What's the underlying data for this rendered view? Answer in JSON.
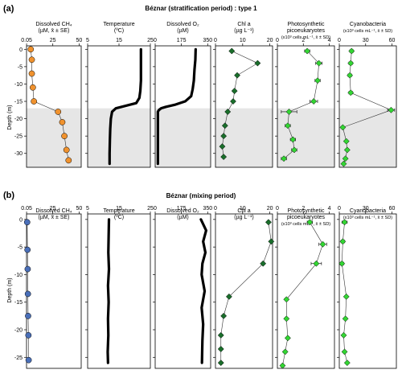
{
  "panels": [
    {
      "label": "(a)",
      "title": "Béznar (stratification period) : type 1",
      "ylabel": "Depth (m)",
      "yticks": [
        0,
        -5,
        -10,
        -15,
        -20,
        -25,
        -30
      ],
      "ylim": [
        -34,
        1
      ],
      "shade": [
        -17,
        -34
      ]
    },
    {
      "label": "(b)",
      "title": "Béznar (mixing period)",
      "ylabel": "Depth (m)",
      "yticks": [
        0,
        -5,
        -10,
        -15,
        -20,
        -25
      ],
      "ylim": [
        -27,
        1
      ],
      "shade": null
    }
  ],
  "columns": [
    {
      "header": [
        "Dissolved CH₄",
        "(µM, x̄ ± SE)"
      ],
      "xlim": [
        0,
        52
      ],
      "xticks": [
        "0.05",
        "25",
        "50"
      ],
      "xtick_values": [
        0.05,
        25,
        50
      ]
    },
    {
      "header": [
        "Temperature",
        "(ºC)"
      ],
      "xlim": [
        5,
        25
      ],
      "xticks": [
        "5",
        "15",
        "25"
      ],
      "xtick_values": [
        5,
        15,
        25
      ]
    },
    {
      "header": [
        "Dissolved O₂",
        "(µM)"
      ],
      "xlim": [
        0,
        370
      ],
      "xticks": [
        "0",
        "175",
        "350"
      ],
      "xtick_values": [
        0,
        175,
        350
      ]
    },
    {
      "header": [
        "Chl a",
        "(µg L⁻¹)"
      ],
      "xlim": [
        0,
        21
      ],
      "xticks": [
        "0",
        "10",
        "20"
      ],
      "xtick_values": [
        0,
        10,
        20
      ]
    },
    {
      "header": [
        "Photosynthetic",
        "picoeukaryotes",
        "(x10³ cells mL⁻¹, x̄ ± SD)"
      ],
      "xlim": [
        0,
        4.4
      ],
      "xticks": [
        "0",
        "2",
        "4"
      ],
      "xtick_values": [
        0,
        2,
        4
      ]
    },
    {
      "header": [
        "Cyanobacteria",
        "(x10³ cells mL⁻¹, x̄ ± SD)"
      ],
      "xlim": [
        0,
        65
      ],
      "xticks": [
        "0",
        "30",
        "60"
      ],
      "xtick_values": [
        0,
        30,
        60
      ]
    }
  ],
  "colors": {
    "ch4_a": "#f0922e",
    "ch4_b": "#4a6fb8",
    "chl": "#1a6e2b",
    "green": "#33d633",
    "line": "#000000",
    "shade": "#e6e6e6"
  },
  "chart_data": [
    {
      "type": "line",
      "title": "Béznar (stratification period) : type 1",
      "ylabel": "Depth (m)",
      "series": [
        {
          "name": "Dissolved CH₄",
          "x": [
            4,
            5,
            5,
            6,
            7,
            30,
            34,
            36,
            38,
            40
          ],
          "y": [
            0,
            -3,
            -7,
            -11,
            -15,
            -18,
            -21,
            -25,
            -29,
            -32
          ]
        },
        {
          "name": "Temperature",
          "x": [
            22,
            22,
            22,
            22,
            21.8,
            21.5,
            20.5,
            17,
            14,
            12.8,
            12.4,
            12.2,
            12.1,
            12,
            12
          ],
          "y": [
            0,
            -3,
            -6,
            -9,
            -12,
            -14,
            -15.5,
            -16.3,
            -17,
            -18,
            -20,
            -23,
            -26,
            -30,
            -33
          ]
        },
        {
          "name": "Dissolved O₂",
          "x": [
            270,
            268,
            262,
            258,
            250,
            240,
            200,
            130,
            70,
            40,
            25,
            18,
            18,
            18,
            18
          ],
          "y": [
            0,
            -3,
            -6,
            -9,
            -11.5,
            -13.5,
            -15,
            -16,
            -16.6,
            -17,
            -17.5,
            -18,
            -22,
            -28,
            -33
          ]
        },
        {
          "name": "Chl a",
          "x": [
            6,
            15.5,
            8,
            7,
            6.5,
            4.5,
            3.5,
            3,
            2.5,
            3
          ],
          "y": [
            -0.5,
            -4,
            -7.5,
            -12,
            -15,
            -18,
            -22,
            -25,
            -28,
            -31
          ]
        },
        {
          "name": "Photosynthetic picoeukaryotes",
          "x": [
            2.3,
            3.2,
            3.1,
            2.8,
            0.9,
            0.8,
            1.2,
            1.3,
            0.5
          ],
          "y": [
            -0.5,
            -4,
            -9,
            -15,
            -18,
            -22,
            -26,
            -29,
            -31.5
          ]
        },
        {
          "name": "Cyanobacteria",
          "x": [
            14,
            13,
            12,
            13,
            59,
            4,
            8,
            9,
            7,
            5
          ],
          "y": [
            -0.5,
            -4,
            -7.5,
            -12.5,
            -17.5,
            -22.5,
            -26.5,
            -29,
            -31.5,
            -33
          ]
        }
      ]
    },
    {
      "type": "line",
      "title": "Béznar (mixing period)",
      "ylabel": "Depth (m)",
      "series": [
        {
          "name": "Dissolved CH₄",
          "x": [
            0.6,
            0.9,
            1.1,
            1.3,
            1.5,
            1.8,
            2
          ],
          "y": [
            -0.5,
            -5.5,
            -9,
            -13.5,
            -17.5,
            -21,
            -25.5
          ]
        },
        {
          "name": "Temperature",
          "x": [
            11.8,
            11.7,
            11.6,
            11.8,
            11.5,
            11.7,
            11.5,
            11.6,
            11.4,
            11.5
          ],
          "y": [
            0,
            -3,
            -6,
            -9,
            -12,
            -15,
            -18,
            -21,
            -24,
            -26
          ]
        },
        {
          "name": "Dissolved O₂",
          "x": [
            305,
            340,
            320,
            335,
            315,
            310,
            330,
            310,
            320,
            315,
            312
          ],
          "y": [
            0,
            -2,
            -4,
            -6,
            -8,
            -10,
            -13,
            -16,
            -19,
            -22,
            -26
          ]
        },
        {
          "name": "Chl a",
          "x": [
            19.5,
            20.5,
            17.5,
            5,
            3,
            2,
            2,
            2
          ],
          "y": [
            -0.5,
            -4,
            -8,
            -14,
            -17.5,
            -21,
            -23.5,
            -26
          ]
        },
        {
          "name": "Photosynthetic picoeukaryotes",
          "x": [
            2.5,
            3.5,
            3,
            0.7,
            0.7,
            0.8,
            0.6,
            0.4
          ],
          "y": [
            -0.5,
            -4.5,
            -8,
            -14.5,
            -18,
            -21.5,
            -24,
            -26.5
          ]
        },
        {
          "name": "Cyanobacteria",
          "x": [
            6,
            4,
            3,
            8,
            7,
            5,
            6,
            9
          ],
          "y": [
            -0.5,
            -4,
            -8,
            -14,
            -18,
            -21,
            -24,
            -26
          ]
        }
      ]
    }
  ]
}
